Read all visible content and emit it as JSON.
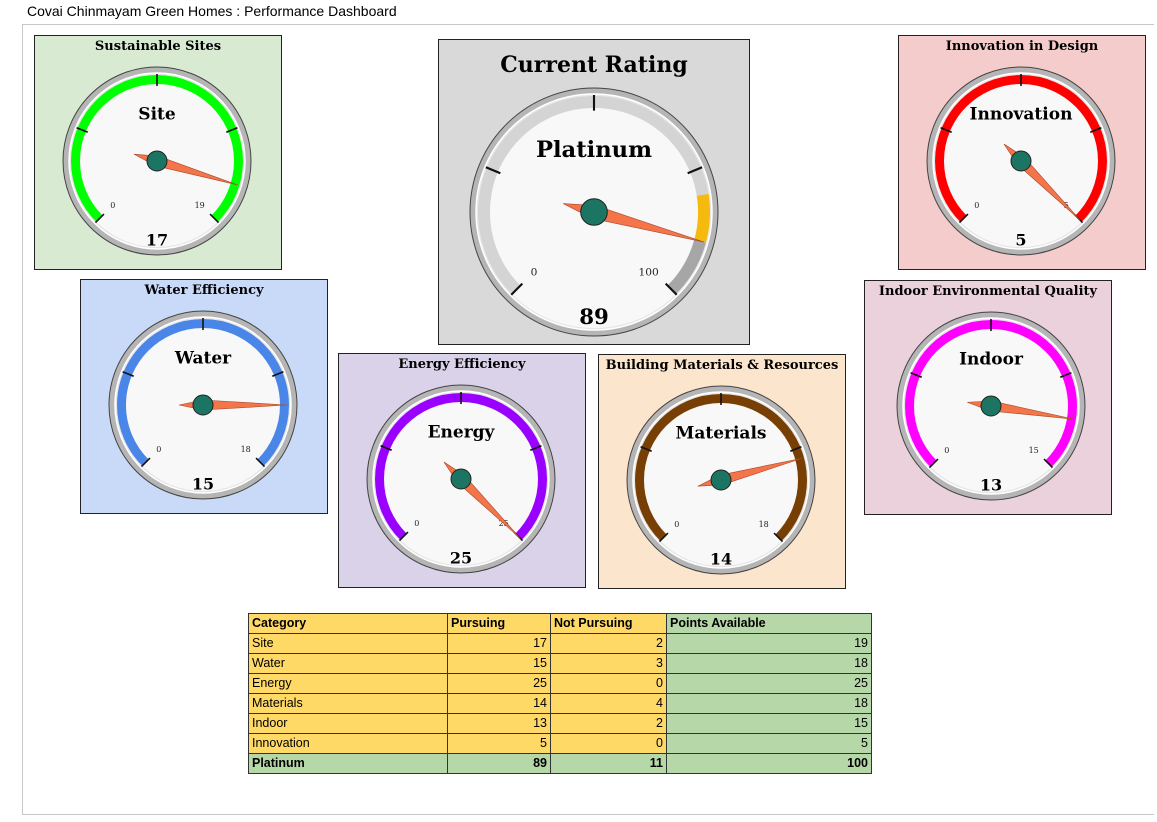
{
  "title": "Covai Chinmayam Green Homes : Performance Dashboard",
  "gauges": {
    "site": {
      "panel_title": "Sustainable Sites",
      "label": "Site",
      "value": 17,
      "min": 0,
      "max": 19,
      "min_label": "0",
      "max_label": "19",
      "band_color": "#00ff00",
      "band_from": 0,
      "band_to": 19,
      "bg": "#d9ead3"
    },
    "water": {
      "panel_title": "Water Efficiency",
      "label": "Water",
      "value": 15,
      "min": 0,
      "max": 18,
      "min_label": "0",
      "max_label": "18",
      "band_color": "#4a86e8",
      "band_from": 0,
      "band_to": 18,
      "bg": "#c9daf8"
    },
    "rating": {
      "panel_title": "Current Rating",
      "label": "Platinum",
      "value": 89,
      "min": 0,
      "max": 100,
      "min_label": "0",
      "max_label": "100",
      "bands": [
        {
          "from": 0,
          "to": 80,
          "color": "#d4d4d4"
        },
        {
          "from": 80,
          "to": 89,
          "color": "#f6b90d"
        },
        {
          "from": 89,
          "to": 100,
          "color": "#a6a6a6"
        }
      ],
      "bg": "#d9d9d9"
    },
    "energy": {
      "panel_title": "Energy Efficiency",
      "label": "Energy",
      "value": 25,
      "min": 0,
      "max": 25,
      "min_label": "0",
      "max_label": "25",
      "band_color": "#9900ff",
      "band_from": 0,
      "band_to": 25,
      "bg": "#d9d2e9"
    },
    "materials": {
      "panel_title": "Building Materials & Resources",
      "label": "Materials",
      "value": 14,
      "min": 0,
      "max": 18,
      "min_label": "0",
      "max_label": "18",
      "band_color": "#783f04",
      "band_from": 0,
      "band_to": 18,
      "bg": "#fce5cd"
    },
    "innovation": {
      "panel_title": "Innovation in Design",
      "label": "Innovation",
      "value": 5,
      "min": 0,
      "max": 5,
      "min_label": "0",
      "max_label": "5",
      "band_color": "#ff0000",
      "band_from": 0,
      "band_to": 5,
      "bg": "#f4cccc"
    },
    "indoor": {
      "panel_title": "Indoor Environmental Quality",
      "label": "Indoor",
      "value": 13,
      "min": 0,
      "max": 15,
      "min_label": "0",
      "max_label": "15",
      "band_color": "#ff00ff",
      "band_from": 0,
      "band_to": 15,
      "bg": "#ead1dc"
    }
  },
  "table": {
    "headers": [
      "Category",
      "Pursuing",
      "Not Pursuing",
      "Points Available"
    ],
    "rows": [
      [
        "Site",
        "17",
        "2",
        "19"
      ],
      [
        "Water",
        "15",
        "3",
        "18"
      ],
      [
        "Energy",
        "25",
        "0",
        "25"
      ],
      [
        "Materials",
        "14",
        "4",
        "18"
      ],
      [
        "Indoor",
        "13",
        "2",
        "15"
      ],
      [
        "Innovation",
        "5",
        "0",
        "5"
      ]
    ],
    "total": [
      "Platinum",
      "89",
      "11",
      "100"
    ]
  },
  "colors": {
    "needle": "#f4754a",
    "hub": "#1c7563",
    "table_yellow": "#ffd966",
    "table_green": "#b6d7a8"
  }
}
